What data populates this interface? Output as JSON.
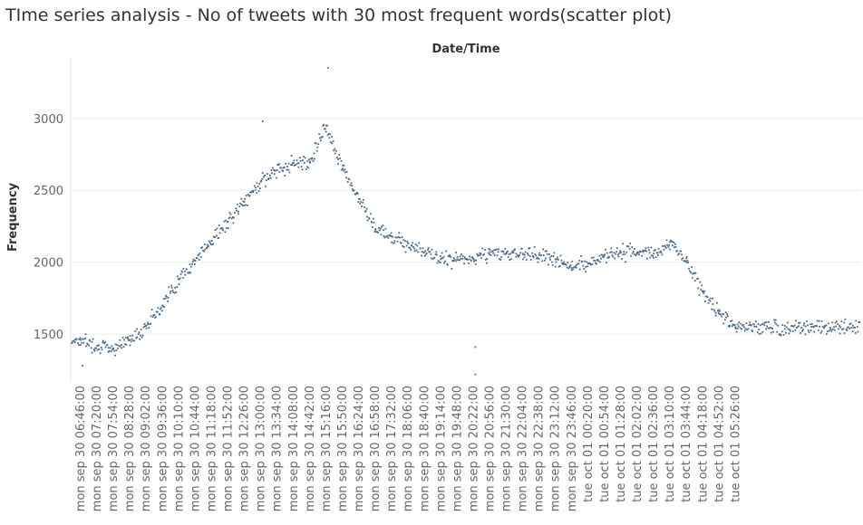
{
  "title": "TIme series analysis - No of tweets with 30 most frequent words(scatter plot)",
  "chart_data": {
    "type": "scatter",
    "title": "TIme series analysis - No of tweets with 30 most frequent words(scatter plot)",
    "xlabel": "Date/Time",
    "ylabel": "Frequency",
    "ylim": [
      1180,
      3420
    ],
    "yticks": [
      1500,
      2000,
      2500,
      3000
    ],
    "grid": true,
    "legend": "none",
    "point_color": "#4e6a8a",
    "x_categories": [
      "mon sep 30 06:46:00",
      "mon sep 30 07:20:00",
      "mon sep 30 07:54:00",
      "mon sep 30 08:28:00",
      "mon sep 30 09:02:00",
      "mon sep 30 09:36:00",
      "mon sep 30 10:10:00",
      "mon sep 30 10:44:00",
      "mon sep 30 11:18:00",
      "mon sep 30 11:52:00",
      "mon sep 30 12:26:00",
      "mon sep 30 13:00:00",
      "mon sep 30 13:34:00",
      "mon sep 30 14:08:00",
      "mon sep 30 14:42:00",
      "mon sep 30 15:16:00",
      "mon sep 30 15:50:00",
      "mon sep 30 16:24:00",
      "mon sep 30 16:58:00",
      "mon sep 30 17:32:00",
      "mon sep 30 18:06:00",
      "mon sep 30 18:40:00",
      "mon sep 30 19:14:00",
      "mon sep 30 19:48:00",
      "mon sep 30 20:22:00",
      "mon sep 30 20:56:00",
      "mon sep 30 21:30:00",
      "mon sep 30 22:04:00",
      "mon sep 30 22:38:00",
      "mon sep 30 23:12:00",
      "mon sep 30 23:46:00",
      "tue oct 01 00:20:00",
      "tue oct 01 00:54:00",
      "tue oct 01 01:28:00",
      "tue oct 01 02:02:00",
      "tue oct 01 02:36:00",
      "tue oct 01 03:10:00",
      "tue oct 01 03:44:00",
      "tue oct 01 04:18:00",
      "tue oct 01 04:52:00",
      "tue oct 01 05:26:00"
    ],
    "series": [
      {
        "x": [
          "mon sep 30 06:46:00",
          "mon sep 30 07:20:00",
          "mon sep 30 07:54:00",
          "mon sep 30 08:28:00",
          "mon sep 30 09:02:00",
          "mon sep 30 09:36:00",
          "mon sep 30 10:10:00",
          "mon sep 30 10:44:00",
          "mon sep 30 11:18:00",
          "mon sep 30 11:52:00",
          "mon sep 30 12:26:00",
          "mon sep 30 13:00:00",
          "mon sep 30 13:34:00",
          "mon sep 30 14:08:00",
          "mon sep 30 14:42:00",
          "mon sep 30 15:16:00",
          "mon sep 30 15:50:00",
          "mon sep 30 16:24:00",
          "mon sep 30 16:58:00",
          "mon sep 30 17:32:00",
          "mon sep 30 18:06:00",
          "mon sep 30 18:40:00",
          "mon sep 30 19:14:00",
          "mon sep 30 19:48:00",
          "mon sep 30 20:22:00",
          "mon sep 30 20:56:00",
          "mon sep 30 21:30:00",
          "mon sep 30 22:04:00",
          "mon sep 30 22:38:00",
          "mon sep 30 23:12:00",
          "mon sep 30 23:46:00",
          "tue oct 01 00:20:00",
          "tue oct 01 00:54:00",
          "tue oct 01 01:28:00",
          "tue oct 01 02:02:00",
          "tue oct 01 02:36:00",
          "tue oct 01 03:10:00",
          "tue oct 01 03:44:00",
          "tue oct 01 04:18:00",
          "tue oct 01 04:52:00",
          "tue oct 01 05:26:00"
        ],
        "values": [
          1460,
          1420,
          1400,
          1460,
          1560,
          1700,
          1880,
          2010,
          2150,
          2280,
          2420,
          2560,
          2640,
          2690,
          2700,
          2950,
          2650,
          2440,
          2230,
          2180,
          2130,
          2070,
          2020,
          2020,
          2020,
          2070,
          2060,
          2060,
          2050,
          2020,
          1960,
          1990,
          2050,
          2070,
          2070,
          2060,
          2140,
          2000,
          1800,
          1640,
          1550
        ]
      }
    ],
    "notable_points": [
      {
        "x": "mon sep 30 15:16:00",
        "y": 3350
      },
      {
        "x": "mon sep 30 13:00:00",
        "y": 2980
      },
      {
        "x": "mon sep 30 20:22:00",
        "y": 1410
      },
      {
        "x": "mon sep 30 20:22:00",
        "y": 1220
      },
      {
        "x": "mon sep 30 06:46:00",
        "y": 1280
      }
    ]
  }
}
